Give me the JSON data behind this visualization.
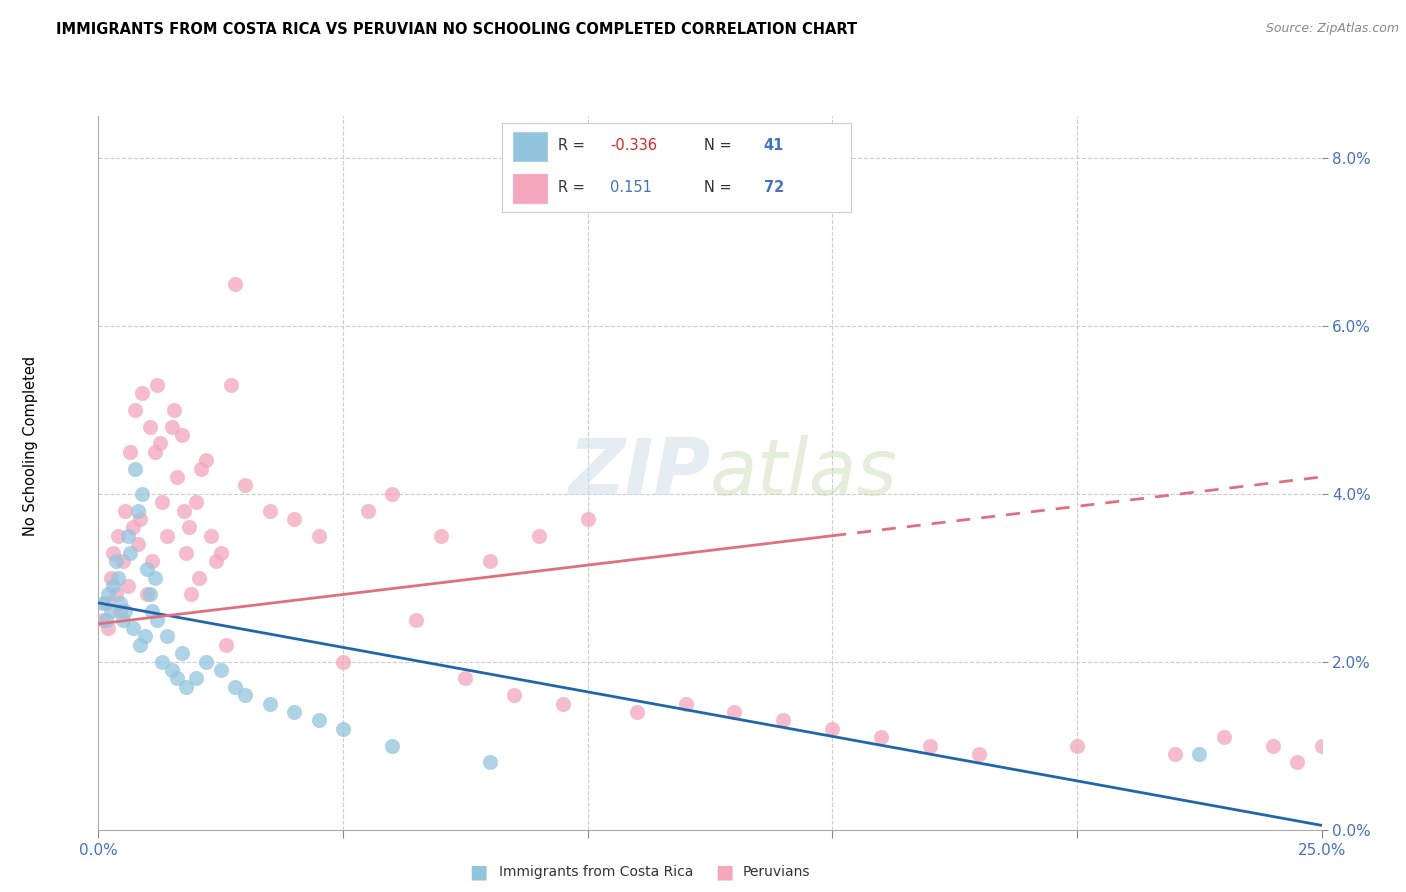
{
  "title": "IMMIGRANTS FROM COSTA RICA VS PERUVIAN NO SCHOOLING COMPLETED CORRELATION CHART",
  "source": "Source: ZipAtlas.com",
  "ylabel": "No Schooling Completed",
  "ytick_vals": [
    0.0,
    2.0,
    4.0,
    6.0,
    8.0
  ],
  "xlim": [
    0.0,
    25.0
  ],
  "ylim": [
    0.0,
    8.5
  ],
  "footer_blue": "Immigrants from Costa Rica",
  "footer_pink": "Peruvians",
  "blue_color": "#92c5de",
  "pink_color": "#f4a6bd",
  "blue_line_color": "#2166ac",
  "pink_line_color": "#d6604d",
  "blue_scatter_x": [
    0.1,
    0.15,
    0.2,
    0.25,
    0.3,
    0.35,
    0.4,
    0.45,
    0.5,
    0.55,
    0.6,
    0.65,
    0.7,
    0.75,
    0.8,
    0.85,
    0.9,
    0.95,
    1.0,
    1.05,
    1.1,
    1.15,
    1.2,
    1.3,
    1.4,
    1.5,
    1.6,
    1.7,
    1.8,
    2.0,
    2.2,
    2.5,
    2.8,
    3.0,
    3.5,
    4.0,
    4.5,
    5.0,
    6.0,
    8.0,
    22.5
  ],
  "blue_scatter_y": [
    2.7,
    2.5,
    2.8,
    2.6,
    2.9,
    3.2,
    3.0,
    2.7,
    2.5,
    2.6,
    3.5,
    3.3,
    2.4,
    4.3,
    3.8,
    2.2,
    4.0,
    2.3,
    3.1,
    2.8,
    2.6,
    3.0,
    2.5,
    2.0,
    2.3,
    1.9,
    1.8,
    2.1,
    1.7,
    1.8,
    2.0,
    1.9,
    1.7,
    1.6,
    1.5,
    1.4,
    1.3,
    1.2,
    1.0,
    0.8,
    0.9
  ],
  "pink_scatter_x": [
    0.1,
    0.15,
    0.2,
    0.25,
    0.3,
    0.35,
    0.4,
    0.45,
    0.5,
    0.55,
    0.6,
    0.65,
    0.7,
    0.75,
    0.8,
    0.85,
    0.9,
    1.0,
    1.05,
    1.1,
    1.15,
    1.2,
    1.25,
    1.3,
    1.4,
    1.5,
    1.55,
    1.6,
    1.7,
    1.75,
    1.8,
    1.85,
    1.9,
    2.0,
    2.05,
    2.1,
    2.2,
    2.3,
    2.4,
    2.5,
    2.6,
    2.7,
    2.8,
    3.0,
    3.5,
    4.0,
    4.5,
    5.0,
    5.5,
    6.0,
    6.5,
    7.0,
    7.5,
    8.0,
    8.5,
    9.0,
    9.5,
    10.0,
    11.0,
    12.0,
    13.0,
    14.0,
    15.0,
    16.0,
    17.0,
    18.0,
    20.0,
    22.0,
    23.0,
    24.0,
    24.5,
    25.0
  ],
  "pink_scatter_y": [
    2.5,
    2.7,
    2.4,
    3.0,
    3.3,
    2.8,
    3.5,
    2.6,
    3.2,
    3.8,
    2.9,
    4.5,
    3.6,
    5.0,
    3.4,
    3.7,
    5.2,
    2.8,
    4.8,
    3.2,
    4.5,
    5.3,
    4.6,
    3.9,
    3.5,
    4.8,
    5.0,
    4.2,
    4.7,
    3.8,
    3.3,
    3.6,
    2.8,
    3.9,
    3.0,
    4.3,
    4.4,
    3.5,
    3.2,
    3.3,
    2.2,
    5.3,
    6.5,
    4.1,
    3.8,
    3.7,
    3.5,
    2.0,
    3.8,
    4.0,
    2.5,
    3.5,
    1.8,
    3.2,
    1.6,
    3.5,
    1.5,
    3.7,
    1.4,
    1.5,
    1.4,
    1.3,
    1.2,
    1.1,
    1.0,
    0.9,
    1.0,
    0.9,
    1.1,
    1.0,
    0.8,
    1.0
  ],
  "blue_line_x0": 0.0,
  "blue_line_y0": 2.7,
  "blue_line_x1": 25.0,
  "blue_line_y1": 0.05,
  "pink_line_x0": 0.0,
  "pink_line_y0": 2.45,
  "pink_line_x1": 15.0,
  "pink_line_y1": 3.5,
  "pink_dash_x0": 15.0,
  "pink_dash_y0": 3.5,
  "pink_dash_x1": 25.0,
  "pink_dash_y1": 4.2
}
